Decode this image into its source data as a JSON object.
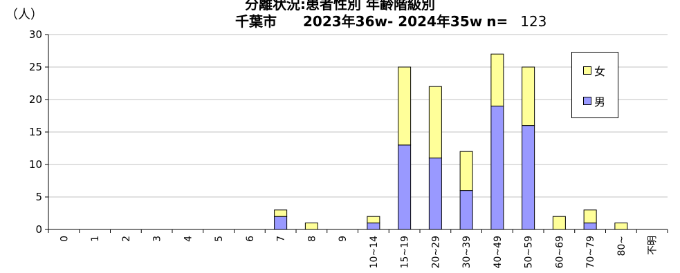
{
  "titles": {
    "line1": "分離状況:患者性別 年齢階級別",
    "city": "千葉市",
    "period": "2023年36w- 2024年35w",
    "n_label": "n=",
    "n_value": "123"
  },
  "unit_label": "（人）",
  "colors": {
    "female": "#ffff99",
    "male": "#9999ff",
    "grid": "#c0c0c0",
    "axis": "#000000"
  },
  "chart_data": {
    "type": "bar",
    "stacked": true,
    "categories": [
      "0",
      "1",
      "2",
      "3",
      "4",
      "5",
      "6",
      "7",
      "8",
      "9",
      "10~14",
      "15~19",
      "20~29",
      "30~39",
      "40~49",
      "50~59",
      "60~69",
      "70~79",
      "80~",
      "不明"
    ],
    "series": [
      {
        "name": "男",
        "values": [
          0,
          0,
          0,
          0,
          0,
          0,
          0,
          2,
          0,
          0,
          1,
          13,
          11,
          6,
          19,
          16,
          0,
          1,
          0,
          0
        ]
      },
      {
        "name": "女",
        "values": [
          0,
          0,
          0,
          0,
          0,
          0,
          0,
          1,
          1,
          0,
          1,
          12,
          11,
          6,
          8,
          9,
          2,
          2,
          1,
          0
        ]
      }
    ],
    "ylim": [
      0,
      30
    ],
    "yticks": [
      "0",
      "5",
      "10",
      "15",
      "20",
      "25",
      "30"
    ],
    "grid": true,
    "legend_position": "top-right",
    "legend": [
      "女",
      "男"
    ]
  }
}
